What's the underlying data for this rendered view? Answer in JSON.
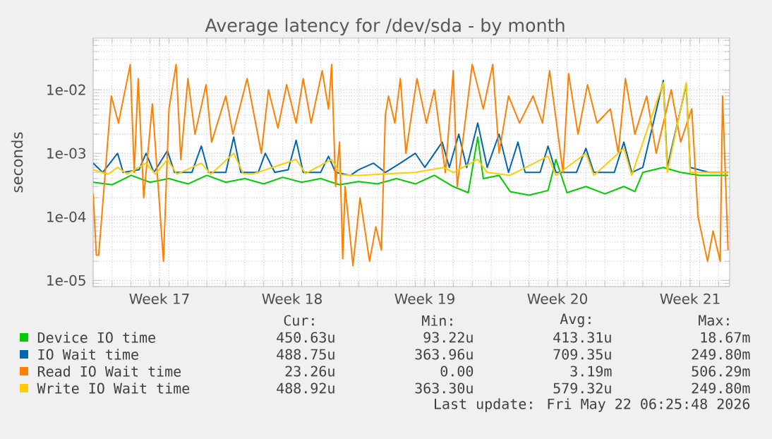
{
  "chart_data": {
    "type": "line",
    "title": "Average latency for /dev/sda - by month",
    "ylabel": "seconds",
    "log": "y",
    "grid": true,
    "legend": "bottom",
    "xlim": [
      "2026-04-20T00:00",
      "2026-05-23T14:00"
    ],
    "xticks": [
      {
        "value": "2026-04-23T12:00",
        "label": "Week 17"
      },
      {
        "value": "2026-04-30T12:00",
        "label": "Week 18"
      },
      {
        "value": "2026-05-07T12:00",
        "label": "Week 19"
      },
      {
        "value": "2026-05-14T12:00",
        "label": "Week 20"
      },
      {
        "value": "2026-05-21T12:00",
        "label": "Week 21"
      }
    ],
    "ylim": [
      8e-06,
      0.065
    ],
    "yticks": [
      {
        "value": 1e-05,
        "label": "1e-05"
      },
      {
        "value": 0.0001,
        "label": "1e-04"
      },
      {
        "value": 0.001,
        "label": "1e-03"
      },
      {
        "value": 0.01,
        "label": "1e-02"
      }
    ],
    "series": [
      {
        "name": "Device IO time",
        "color": "#00cc00",
        "x": [
          "2026-04-20T00:00",
          "2026-04-21T00:00",
          "2026-04-22T00:00",
          "2026-04-23T00:00",
          "2026-04-24T00:00",
          "2026-04-25T00:00",
          "2026-04-26T00:00",
          "2026-04-27T00:00",
          "2026-04-28T00:00",
          "2026-04-29T00:00",
          "2026-04-30T00:00",
          "2026-05-01T00:00",
          "2026-05-02T00:00",
          "2026-05-03T00:00",
          "2026-05-04T00:00",
          "2026-05-05T00:00",
          "2026-05-06T00:00",
          "2026-05-07T00:00",
          "2026-05-08T00:00",
          "2026-05-09T00:00",
          "2026-05-09T19:00",
          "2026-05-10T07:00",
          "2026-05-10T14:00",
          "2026-05-11T10:00",
          "2026-05-12T00:00",
          "2026-05-13T00:00",
          "2026-05-14T00:00",
          "2026-05-14T10:00",
          "2026-05-15T00:00",
          "2026-05-16T00:00",
          "2026-05-17T00:00",
          "2026-05-18T00:00",
          "2026-05-18T14:00",
          "2026-05-19T00:00",
          "2026-05-20T02:00",
          "2026-05-21T00:00",
          "2026-05-22T00:00",
          "2026-05-23T12:00"
        ],
        "values": [
          0.00035,
          0.00032,
          0.00045,
          0.00035,
          0.0004,
          0.00033,
          0.00045,
          0.00035,
          0.0004,
          0.00033,
          0.00042,
          0.00035,
          0.0004,
          0.00032,
          0.00036,
          0.00033,
          0.0004,
          0.00033,
          0.00045,
          0.0003,
          0.00024,
          0.0018,
          0.0004,
          0.00045,
          0.00025,
          0.00022,
          0.00026,
          0.0008,
          0.00024,
          0.0003,
          0.00023,
          0.0003,
          0.00025,
          0.0005,
          0.0006,
          0.0005,
          0.00045,
          0.00045
        ]
      },
      {
        "name": "IO Wait time",
        "color": "#0066b3",
        "x": [
          "2026-04-20T00:00",
          "2026-04-20T12:00",
          "2026-04-21T07:00",
          "2026-04-21T14:00",
          "2026-04-22T10:00",
          "2026-04-22T19:00",
          "2026-04-23T05:00",
          "2026-04-23T22:00",
          "2026-04-24T07:00",
          "2026-04-25T05:00",
          "2026-04-25T17:00",
          "2026-04-26T02:00",
          "2026-04-27T00:00",
          "2026-04-27T10:00",
          "2026-04-27T19:00",
          "2026-04-28T17:00",
          "2026-04-29T02:00",
          "2026-04-29T14:00",
          "2026-04-30T07:00",
          "2026-04-30T17:00",
          "2026-05-01T02:00",
          "2026-05-02T00:00",
          "2026-05-02T10:00",
          "2026-05-02T19:00",
          "2026-05-03T14:00",
          "2026-05-04T00:00",
          "2026-05-04T19:00",
          "2026-05-05T10:00",
          "2026-05-06T05:00",
          "2026-05-07T00:00",
          "2026-05-07T12:00",
          "2026-05-08T10:00",
          "2026-05-08T19:00",
          "2026-05-09T07:00",
          "2026-05-09T17:00",
          "2026-05-10T07:00",
          "2026-05-10T19:00",
          "2026-05-11T10:00",
          "2026-05-11T22:00",
          "2026-05-12T10:00",
          "2026-05-12T19:00",
          "2026-05-13T14:00",
          "2026-05-14T00:00",
          "2026-05-14T10:00",
          "2026-05-15T12:00",
          "2026-05-16T00:00",
          "2026-05-16T10:00",
          "2026-05-17T12:00",
          "2026-05-18T00:00",
          "2026-05-18T10:00",
          "2026-05-19T00:00",
          "2026-05-20T02:00",
          "2026-05-20T07:00",
          "2026-05-21T07:00",
          "2026-05-21T12:00",
          "2026-05-22T12:00",
          "2026-05-23T12:00"
        ],
        "values": [
          0.0007,
          0.0005,
          0.001,
          0.0005,
          0.00055,
          0.001,
          0.0005,
          0.0011,
          0.0005,
          0.0005,
          0.0013,
          0.0005,
          0.0005,
          0.0018,
          0.0005,
          0.0005,
          0.001,
          0.0005,
          0.00055,
          0.0016,
          0.0005,
          0.0005,
          0.0009,
          0.0005,
          0.00045,
          0.00055,
          0.0007,
          0.0005,
          0.0007,
          0.001,
          0.0006,
          0.0015,
          0.0006,
          0.002,
          0.0006,
          0.003,
          0.0006,
          0.002,
          0.0005,
          0.0015,
          0.0005,
          0.0005,
          0.0013,
          0.0005,
          0.0005,
          0.0012,
          0.0005,
          0.0005,
          0.0015,
          0.0005,
          0.0006,
          0.014,
          0.0006,
          0.012,
          0.0006,
          0.0005,
          0.0005
        ]
      },
      {
        "name": "Read IO Wait time",
        "color": "#ff8000",
        "x": [
          "2026-04-20T00:00",
          "2026-04-20T04:00",
          "2026-04-20T07:00",
          "2026-04-20T23:00",
          "2026-04-21T08:00",
          "2026-04-21T23:00",
          "2026-04-22T04:00",
          "2026-04-22T09:00",
          "2026-04-22T16:00",
          "2026-04-23T03:00",
          "2026-04-23T17:00",
          "2026-04-24T00:00",
          "2026-04-24T09:00",
          "2026-04-24T15:00",
          "2026-04-25T00:00",
          "2026-04-25T09:00",
          "2026-04-25T23:00",
          "2026-04-26T06:00",
          "2026-04-27T00:00",
          "2026-04-27T09:00",
          "2026-04-28T03:00",
          "2026-04-28T21:00",
          "2026-04-29T06:00",
          "2026-04-29T18:00",
          "2026-04-30T05:00",
          "2026-04-30T17:00",
          "2026-05-01T02:00",
          "2026-05-01T12:00",
          "2026-05-02T02:00",
          "2026-05-02T10:00",
          "2026-05-02T14:00",
          "2026-05-02T19:00",
          "2026-05-03T00:00",
          "2026-05-03T04:00",
          "2026-05-03T07:00",
          "2026-05-03T17:00",
          "2026-05-04T02:00",
          "2026-05-04T14:00",
          "2026-05-04T22:00",
          "2026-05-05T05:00",
          "2026-05-05T10:00",
          "2026-05-05T14:00",
          "2026-05-05T22:00",
          "2026-05-06T05:00",
          "2026-05-06T12:00",
          "2026-05-07T02:00",
          "2026-05-07T14:00",
          "2026-05-08T00:00",
          "2026-05-08T14:00",
          "2026-05-09T00:00",
          "2026-05-09T05:00",
          "2026-05-10T00:00",
          "2026-05-10T14:00",
          "2026-05-11T02:00",
          "2026-05-11T10:00",
          "2026-05-11T22:00",
          "2026-05-12T12:00",
          "2026-05-13T05:00",
          "2026-05-13T17:00",
          "2026-05-14T02:00",
          "2026-05-14T19:00",
          "2026-05-15T02:00",
          "2026-05-15T14:00",
          "2026-05-16T02:00",
          "2026-05-16T14:00",
          "2026-05-17T07:00",
          "2026-05-17T17:00",
          "2026-05-18T02:00",
          "2026-05-18T14:00",
          "2026-05-19T05:00",
          "2026-05-19T17:00",
          "2026-05-20T12:00",
          "2026-05-21T00:00",
          "2026-05-21T14:00",
          "2026-05-21T22:00",
          "2026-05-22T10:00",
          "2026-05-22T17:00",
          "2026-05-23T02:00",
          "2026-05-23T05:00",
          "2026-05-23T12:00"
        ],
        "values": [
          0.00023,
          2.5e-05,
          2.5e-05,
          0.008,
          0.003,
          0.025,
          0.0005,
          0.015,
          0.0002,
          0.006,
          2e-05,
          0.005,
          0.025,
          0.0008,
          0.015,
          0.002,
          0.012,
          0.0015,
          0.008,
          0.002,
          0.015,
          0.001,
          0.01,
          0.0025,
          0.012,
          0.003,
          0.015,
          0.003,
          0.02,
          0.005,
          0.025,
          0.0003,
          0.0015,
          2.2e-05,
          0.0003,
          1.7e-05,
          0.0002,
          2e-05,
          7e-05,
          3e-05,
          0.004,
          0.008,
          0.003,
          0.015,
          0.001,
          0.015,
          0.003,
          0.01,
          0.0005,
          0.02,
          0.0003,
          0.025,
          0.005,
          0.025,
          0.001,
          0.008,
          0.003,
          0.008,
          0.003,
          0.02,
          0.0005,
          0.018,
          0.002,
          0.012,
          0.003,
          0.005,
          0.001,
          0.015,
          0.002,
          0.008,
          0.001,
          0.01,
          0.0015,
          0.005,
          0.0001,
          2e-05,
          6e-05,
          2e-05,
          0.008,
          3e-05
        ]
      },
      {
        "name": "Write IO Wait time",
        "color": "#ffcc00",
        "x": [
          "2026-04-20T00:00",
          "2026-04-20T19:00",
          "2026-04-21T07:00",
          "2026-04-21T19:00",
          "2026-04-22T19:00",
          "2026-04-23T07:00",
          "2026-04-23T22:00",
          "2026-04-24T10:00",
          "2026-04-25T17:00",
          "2026-04-26T05:00",
          "2026-04-27T10:00",
          "2026-04-27T22:00",
          "2026-04-28T12:00",
          "2026-04-30T17:00",
          "2026-05-01T05:00",
          "2026-05-02T14:00",
          "2026-05-03T02:00",
          "2026-05-04T00:00",
          "2026-05-07T00:00",
          "2026-05-08T12:00",
          "2026-05-09T00:00",
          "2026-05-10T07:00",
          "2026-05-10T19:00",
          "2026-05-12T00:00",
          "2026-05-14T00:00",
          "2026-05-14T10:00",
          "2026-05-16T00:00",
          "2026-05-16T10:00",
          "2026-05-18T00:00",
          "2026-05-18T10:00",
          "2026-05-20T02:00",
          "2026-05-20T07:00",
          "2026-05-21T07:00",
          "2026-05-21T12:00",
          "2026-05-23T12:00"
        ],
        "values": [
          0.00055,
          0.00047,
          0.0006,
          0.00047,
          0.0007,
          0.00047,
          0.0008,
          0.00047,
          0.0007,
          0.00047,
          0.001,
          0.00048,
          0.00048,
          0.0008,
          0.00048,
          0.0008,
          0.00046,
          0.00045,
          0.0005,
          0.0006,
          0.0005,
          0.0008,
          0.0005,
          0.00045,
          0.0009,
          0.00045,
          0.001,
          0.00045,
          0.0012,
          0.00045,
          0.013,
          0.0005,
          0.013,
          0.0005,
          0.0005
        ]
      }
    ],
    "annotations": [
      "Cur:",
      "Min:",
      "Avg:",
      "Max:",
      "450.63u",
      "93.22u",
      "413.31u",
      "18.67m",
      "488.75u",
      "363.96u",
      "709.35u",
      "249.80m",
      "23.26u",
      "0.00",
      "3.19m",
      "506.29m",
      "488.92u",
      "363.30u",
      "579.32u",
      "249.80m",
      "Last update: Fri May 22 06:25:48 2026"
    ]
  }
}
